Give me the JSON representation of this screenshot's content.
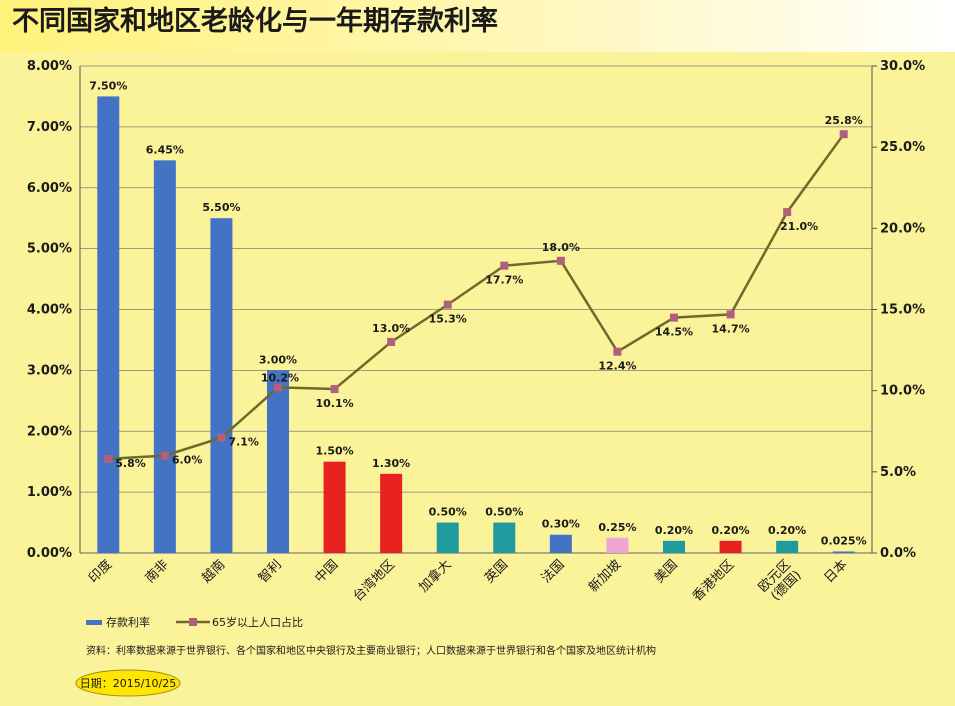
{
  "chart_data": {
    "type": "bar",
    "title": "不同国家和地区老龄化与一年期存款利率",
    "categories": [
      "印度",
      "南非",
      "越南",
      "智利",
      "中国",
      "台湾地区",
      "加拿大",
      "英国",
      "法国",
      "新加坡",
      "美国",
      "香港地区",
      "欧元区(德国)",
      "日本"
    ],
    "category_label_lines": [
      [
        "印度"
      ],
      [
        "南非"
      ],
      [
        "越南"
      ],
      [
        "智利"
      ],
      [
        "中国"
      ],
      [
        "台湾地区"
      ],
      [
        "加拿大"
      ],
      [
        "英国"
      ],
      [
        "法国"
      ],
      [
        "新加坡"
      ],
      [
        "美国"
      ],
      [
        "香港地区"
      ],
      [
        "欧元区",
        "(德国)"
      ],
      [
        "日本"
      ]
    ],
    "series": [
      {
        "name": "存款利率",
        "type": "bar",
        "axis": "left",
        "values": [
          7.5,
          6.45,
          5.5,
          3.0,
          1.5,
          1.3,
          0.5,
          0.5,
          0.3,
          0.25,
          0.2,
          0.2,
          0.2,
          0.025
        ],
        "labels": [
          "7.50%",
          "6.45%",
          "5.50%",
          "3.00%",
          "1.50%",
          "1.30%",
          "0.50%",
          "0.50%",
          "0.30%",
          "0.25%",
          "0.20%",
          "0.20%",
          "0.20%",
          "0.025%"
        ]
      },
      {
        "name": "65岁以上人口占比",
        "type": "line",
        "axis": "right",
        "values": [
          5.8,
          6.0,
          7.1,
          10.2,
          10.1,
          13.0,
          15.3,
          17.7,
          18.0,
          12.4,
          14.5,
          14.7,
          21.0,
          25.8
        ],
        "labels": [
          "5.8%",
          "6.0%",
          "7.1%",
          "10.2%",
          "10.1%",
          "13.0%",
          "15.3%",
          "17.7%",
          "18.0%",
          "12.4%",
          "14.5%",
          "14.7%",
          "21.0%",
          "25.8%"
        ]
      }
    ],
    "bar_colors": [
      "#4472c4",
      "#4472c4",
      "#4472c4",
      "#4472c4",
      "#e8221f",
      "#e8221f",
      "#1f9ba0",
      "#1f9ba0",
      "#4472c4",
      "#f0a6d4",
      "#1f9ba0",
      "#e8221f",
      "#1f9ba0",
      "#4472c4"
    ],
    "category_label_colors": [
      "#1a1a1a",
      "#1a1a1a",
      "#1a1a1a",
      "#1a1a1a",
      "#e07aa0",
      "#e07aa0",
      "#1a1a1a",
      "#1a1a1a",
      "#1a1a1a",
      "#e07aa0",
      "#1a1a1a",
      "#e07aa0",
      "#1a1a1a",
      "#1a1a1a"
    ],
    "line_color": "#6e6a2c",
    "marker_color": "#b0607a",
    "left_axis": {
      "min": 0,
      "max": 8,
      "step": 1,
      "ticks": [
        "0.00%",
        "1.00%",
        "2.00%",
        "3.00%",
        "4.00%",
        "5.00%",
        "6.00%",
        "7.00%",
        "8.00%"
      ]
    },
    "right_axis": {
      "min": 0,
      "max": 30,
      "step": 5,
      "ticks": [
        "0.0%",
        "5.0%",
        "10.0%",
        "15.0%",
        "20.0%",
        "25.0%",
        "30.0%"
      ]
    },
    "grid": true,
    "plot_background": "#fbf39a",
    "legend": [
      {
        "name": "存款利率",
        "kind": "bar"
      },
      {
        "name": "65岁以上人口占比",
        "kind": "line"
      }
    ],
    "legend_position": "bottom-left"
  },
  "footnote": "资料：利率数据来源于世界银行、各个国家和地区中央银行及主要商业银行；人口数据来源于世界银行和各个国家及地区统计机构",
  "date_stamp": "日期：2015/10/25"
}
